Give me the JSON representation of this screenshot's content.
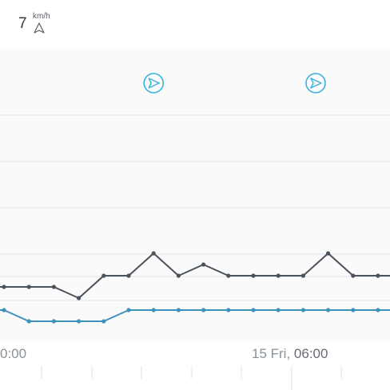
{
  "wind": {
    "value": "7",
    "unit": "km/h",
    "direction_icon": "navigation-arrow-icon"
  },
  "markers": [
    {
      "icon": "direction-arrow-circle-icon",
      "x": 6
    },
    {
      "icon": "direction-arrow-circle-icon",
      "x": 12.5
    }
  ],
  "time_axis": {
    "label_left": "0:00",
    "label_right_day": "15 Fri, ",
    "label_right_time": "06:00"
  },
  "colors": {
    "dark_series": "#4a525c",
    "blue_series": "#3d91bd",
    "marker": "#38b2df",
    "grid": "#e3e5e8"
  },
  "chart_data": {
    "type": "line",
    "x_ticks": [
      0,
      3,
      6,
      9,
      12,
      15
    ],
    "series": [
      {
        "color": "#4a525c",
        "points": [
          [
            0,
            0
          ],
          [
            1,
            0
          ],
          [
            2,
            0
          ],
          [
            3,
            -1
          ],
          [
            4,
            1
          ],
          [
            5,
            1
          ],
          [
            6,
            3
          ],
          [
            7,
            1
          ],
          [
            8,
            2
          ],
          [
            9,
            1
          ],
          [
            10,
            1
          ],
          [
            11,
            1
          ],
          [
            12,
            1
          ],
          [
            13,
            3
          ],
          [
            14,
            1
          ],
          [
            15,
            1
          ],
          [
            16,
            1
          ]
        ]
      },
      {
        "color": "#3d91bd",
        "points": [
          [
            0,
            0
          ],
          [
            1,
            -1
          ],
          [
            2,
            -1
          ],
          [
            3,
            -1
          ],
          [
            4,
            -1
          ],
          [
            5,
            0
          ],
          [
            6,
            0
          ],
          [
            7,
            0
          ],
          [
            8,
            0
          ],
          [
            9,
            0
          ],
          [
            10,
            0
          ],
          [
            11,
            0
          ],
          [
            12,
            0
          ],
          [
            13,
            0
          ],
          [
            14,
            0
          ],
          [
            15,
            0
          ],
          [
            16,
            0
          ]
        ]
      }
    ]
  }
}
